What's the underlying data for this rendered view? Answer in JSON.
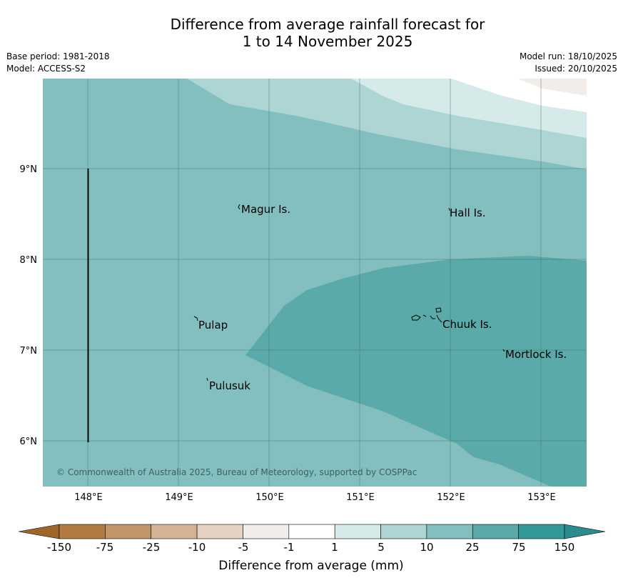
{
  "header": {
    "title_line1": "Difference from average rainfall forecast for",
    "title_line2": "1 to 14 November 2025",
    "base_period": "Base period: 1981-2018",
    "model": "Model: ACCESS-S2",
    "model_run": "Model run: 18/10/2025",
    "issued": "Issued: 20/10/2025"
  },
  "map": {
    "lat_labels": [
      "9°N",
      "8°N",
      "7°N",
      "6°N"
    ],
    "lon_labels": [
      "148°E",
      "149°E",
      "150°E",
      "151°E",
      "152°E",
      "153°E"
    ],
    "places": [
      {
        "name": "Magur Is."
      },
      {
        "name": "Hall Is."
      },
      {
        "name": "Pulap"
      },
      {
        "name": "Chuuk Is."
      },
      {
        "name": "Mortlock Is."
      },
      {
        "name": "Pulusuk"
      }
    ],
    "copyright": "© Commonwealth of Australia 2025, Bureau of Meteorology, supported by COSPPac"
  },
  "legend": {
    "ticks": [
      "-150",
      "-75",
      "-25",
      "-10",
      "-5",
      "-1",
      "1",
      "5",
      "10",
      "25",
      "75",
      "150"
    ],
    "colors": [
      "#b07a40",
      "#c2946a",
      "#d3b393",
      "#e5d2c2",
      "#f2ede8",
      "#ffffff",
      "#d6eaea",
      "#acd5d4",
      "#84bfbf",
      "#5aaaa9",
      "#31999a"
    ],
    "low_extend_color": "#a06628",
    "high_extend_color": "#2a8c8c",
    "label": "Difference from average (mm)"
  }
}
